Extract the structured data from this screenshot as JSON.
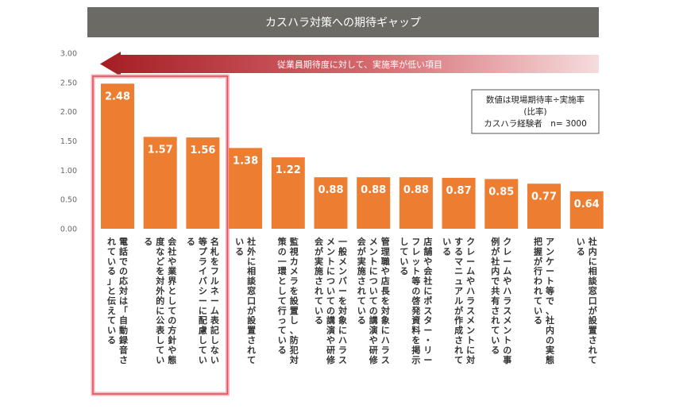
{
  "chart_data": {
    "type": "bar",
    "title": "カスハラ対策への期待ギャップ",
    "arrow_label": "従業員期待度に対して、実施率が低い項目",
    "note_lines": [
      "数値は現場期待率÷実施率",
      "(比率)",
      "カスハラ経験者　n= 3000"
    ],
    "ylim": [
      0,
      3
    ],
    "yticks": [
      "0.00",
      "0.50",
      "1.00",
      "1.50",
      "2.00",
      "2.50",
      "3.00"
    ],
    "grid": false,
    "bar_color": "#ed7d31",
    "highlight_color": "#e0505a",
    "highlight_count": 3,
    "values": [
      2.48,
      1.57,
      1.56,
      1.38,
      1.22,
      0.88,
      0.88,
      0.88,
      0.87,
      0.85,
      0.77,
      0.64
    ],
    "value_labels": [
      "2.48",
      "1.57",
      "1.56",
      "1.38",
      "1.22",
      "0.88",
      "0.88",
      "0.88",
      "0.87",
      "0.85",
      "0.77",
      "0.64"
    ],
    "categories": [
      [
        "電話での応対は「自動録音さ",
        "れている」と伝えている"
      ],
      [
        "会社や業界としての方針や態",
        "度などを対外的に公表してい",
        "る"
      ],
      [
        "名札をフルネーム表記しない",
        "等プライバシーに配慮してい",
        "る"
      ],
      [
        "社外に相談窓口が設置されて",
        "いる"
      ],
      [
        "監視カメラを設置し、防犯対",
        "策の一環として行っている"
      ],
      [
        "一般メンバーを対象にハラス",
        "メントについての講演や研修",
        "会が実施されている"
      ],
      [
        "管理職や店長を対象にハラス",
        "メントについての講演や研修",
        "会が実施されている"
      ],
      [
        "店舗や会社にポスター・リー",
        "フレット等の啓発資料を掲示",
        "している"
      ],
      [
        "クレームやハラスメントに対",
        "するマニュアルが作成されて",
        "いる"
      ],
      [
        "クレームやハラスメントの事",
        "例が社内で共有されている"
      ],
      [
        "アンケート等で、社内の実態",
        "把握が行われている"
      ],
      [
        "社内に相談窓口が設置されて",
        "いる"
      ]
    ]
  }
}
